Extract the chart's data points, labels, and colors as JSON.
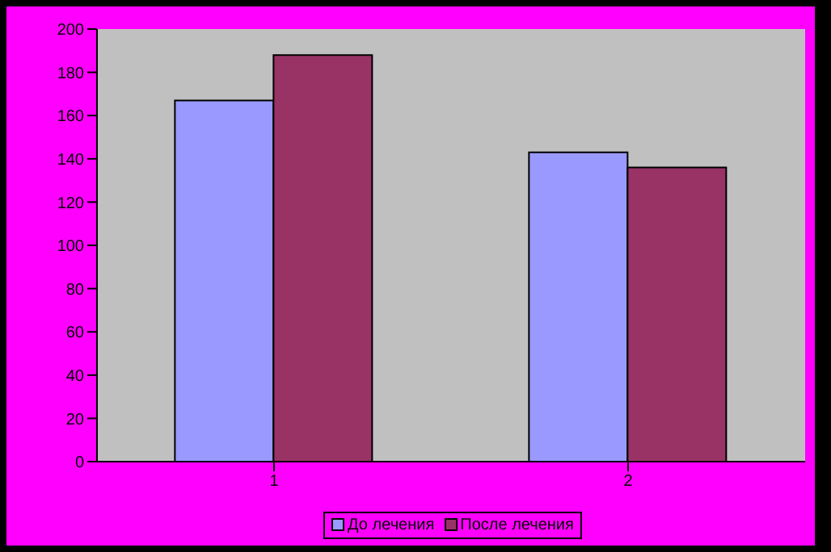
{
  "chart_data": {
    "type": "bar",
    "categories": [
      "1",
      "2"
    ],
    "series": [
      {
        "name": "До лечения",
        "color": "#9999ff",
        "values": [
          167,
          143
        ]
      },
      {
        "name": "После лечения",
        "color": "#993366",
        "values": [
          188,
          136
        ]
      }
    ],
    "ylim": [
      0,
      200
    ],
    "yticks": [
      0,
      20,
      40,
      60,
      80,
      100,
      120,
      140,
      160,
      180,
      200
    ],
    "legend": "bottom"
  }
}
